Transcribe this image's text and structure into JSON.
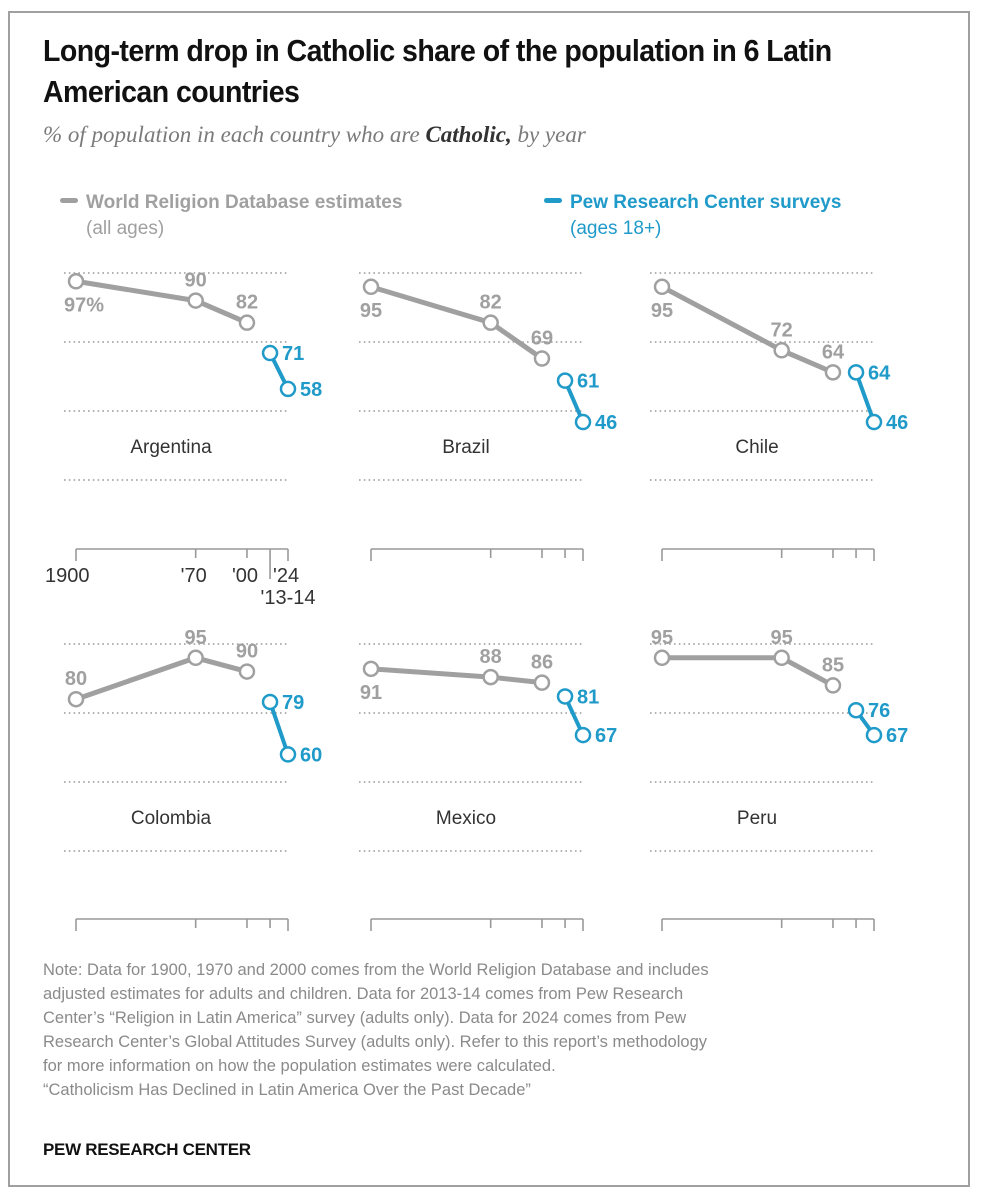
{
  "header": {
    "title": "Long-term drop in Catholic share of the population in 6 Latin American countries",
    "subtitle_prefix": "% of population in each country who are ",
    "subtitle_bold": "Catholic,",
    "subtitle_suffix": " by year"
  },
  "legend": [
    {
      "label": "World Religion Database estimates",
      "sublabel": "(all ages)",
      "color": "#a0a0a0"
    },
    {
      "label": "Pew Research Center surveys",
      "sublabel": "(ages 18+)",
      "color": "#1f9ac9"
    }
  ],
  "chart_data": {
    "type": "line",
    "title": "Long-term drop in Catholic share of the population in 6 Latin American countries",
    "ylabel": "% of population who are Catholic",
    "ylim": [
      0,
      100
    ],
    "gridlines": [
      100,
      75,
      50,
      25
    ],
    "x_ticks": [
      {
        "label": "1900",
        "year": 1900
      },
      {
        "label": "'70",
        "year": 1970
      },
      {
        "label": "'00",
        "year": 2000
      },
      {
        "label": "'13-14",
        "year": 2013.5
      },
      {
        "label": "'24",
        "year": 2024
      }
    ],
    "x_tick_labels_shown_on": "Argentina",
    "first_label_suffix": "%",
    "series_colors": {
      "World Religion Database estimates": "#a0a0a0",
      "Pew Research Center surveys": "#1f9ac9"
    },
    "panels": [
      {
        "country": "Argentina",
        "series": [
          {
            "name": "World Religion Database estimates",
            "x": [
              1900,
              1970,
              2000
            ],
            "values": [
              97,
              90,
              82
            ]
          },
          {
            "name": "Pew Research Center surveys",
            "x": [
              2013.5,
              2024
            ],
            "values": [
              71,
              58
            ]
          }
        ]
      },
      {
        "country": "Brazil",
        "series": [
          {
            "name": "World Religion Database estimates",
            "x": [
              1900,
              1970,
              2000
            ],
            "values": [
              95,
              82,
              69
            ]
          },
          {
            "name": "Pew Research Center surveys",
            "x": [
              2013.5,
              2024
            ],
            "values": [
              61,
              46
            ]
          }
        ]
      },
      {
        "country": "Chile",
        "series": [
          {
            "name": "World Religion Database estimates",
            "x": [
              1900,
              1970,
              2000
            ],
            "values": [
              95,
              72,
              64
            ]
          },
          {
            "name": "Pew Research Center surveys",
            "x": [
              2013.5,
              2024
            ],
            "values": [
              64,
              46
            ]
          }
        ]
      },
      {
        "country": "Colombia",
        "series": [
          {
            "name": "World Religion Database estimates",
            "x": [
              1900,
              1970,
              2000
            ],
            "values": [
              80,
              95,
              90
            ]
          },
          {
            "name": "Pew Research Center surveys",
            "x": [
              2013.5,
              2024
            ],
            "values": [
              79,
              60
            ]
          }
        ]
      },
      {
        "country": "Mexico",
        "series": [
          {
            "name": "World Religion Database estimates",
            "x": [
              1900,
              1970,
              2000
            ],
            "values": [
              91,
              88,
              86
            ]
          },
          {
            "name": "Pew Research Center surveys",
            "x": [
              2013.5,
              2024
            ],
            "values": [
              81,
              67
            ]
          }
        ]
      },
      {
        "country": "Peru",
        "series": [
          {
            "name": "World Religion Database estimates",
            "x": [
              1900,
              1970,
              2000
            ],
            "values": [
              95,
              95,
              85
            ]
          },
          {
            "name": "Pew Research Center surveys",
            "x": [
              2013.5,
              2024
            ],
            "values": [
              76,
              67
            ]
          }
        ]
      }
    ]
  },
  "note": [
    "Note: Data for 1900, 1970 and 2000 comes from the World Religion Database and includes",
    "adjusted estimates for adults and children. Data for 2013-14 comes from Pew Research",
    "Center’s “Religion in Latin America” survey (adults only). Data for 2024 comes from Pew",
    "Research Center’s Global Attitudes Survey (adults only). Refer to this report’s methodology",
    "for more information on how the population estimates were calculated.",
    "“Catholicism Has Declined in Latin America Over the Past Decade”"
  ],
  "source": "PEW RESEARCH CENTER"
}
